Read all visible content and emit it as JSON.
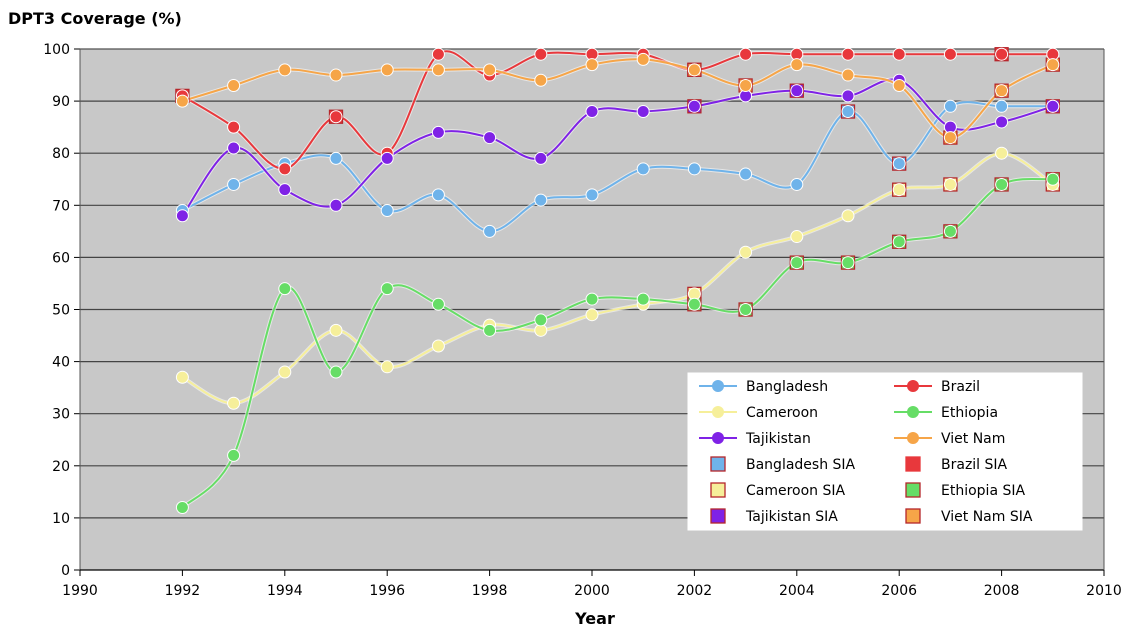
{
  "chart_data": {
    "type": "line",
    "title": "",
    "ylabel": "DPT3 Coverage (%)",
    "xlabel": "Year",
    "xlim": [
      1990,
      2010
    ],
    "ylim": [
      0,
      100
    ],
    "x_ticks": [
      1990,
      1992,
      1994,
      1996,
      1998,
      2000,
      2002,
      2004,
      2006,
      2008,
      2010
    ],
    "y_ticks": [
      0,
      10,
      20,
      30,
      40,
      50,
      60,
      70,
      80,
      90,
      100
    ],
    "grid": "horizontal",
    "legend_position": "bottom-right",
    "x": [
      1992,
      1993,
      1994,
      1995,
      1996,
      1997,
      1998,
      1999,
      2000,
      2001,
      2002,
      2003,
      2004,
      2005,
      2006,
      2007,
      2008,
      2009
    ],
    "series": [
      {
        "name": "Bangladesh",
        "color": "#6fb3ea",
        "values": [
          69,
          74,
          78,
          79,
          69,
          72,
          65,
          71,
          72,
          77,
          77,
          76,
          74,
          88,
          78,
          89,
          89,
          89
        ]
      },
      {
        "name": "Brazil",
        "color": "#e8383c",
        "values": [
          91,
          85,
          77,
          87,
          80,
          99,
          95,
          99,
          99,
          99,
          96,
          99,
          99,
          99,
          99,
          99,
          99,
          99
        ]
      },
      {
        "name": "Cameroon",
        "color": "#f6ef9a",
        "values": [
          37,
          32,
          38,
          46,
          39,
          43,
          47,
          46,
          49,
          51,
          53,
          61,
          64,
          68,
          73,
          74,
          80,
          74
        ]
      },
      {
        "name": "Ethiopia",
        "color": "#66dd66",
        "values": [
          12,
          22,
          54,
          38,
          54,
          51,
          46,
          48,
          52,
          52,
          51,
          50,
          59,
          59,
          63,
          65,
          74,
          75
        ]
      },
      {
        "name": "Tajikistan",
        "color": "#7f22e6",
        "values": [
          68,
          81,
          73,
          70,
          79,
          84,
          83,
          79,
          88,
          88,
          89,
          91,
          92,
          91,
          94,
          85,
          86,
          89
        ]
      },
      {
        "name": "Viet Nam",
        "color": "#f6a548",
        "values": [
          90,
          93,
          96,
          95,
          96,
          96,
          96,
          94,
          97,
          98,
          96,
          93,
          97,
          95,
          93,
          83,
          92,
          97
        ]
      }
    ],
    "sia_series": [
      {
        "name": "Bangladesh SIA",
        "color": "#6fb3ea",
        "points": [
          [
            2005,
            88
          ],
          [
            2006,
            78
          ]
        ]
      },
      {
        "name": "Brazil SIA",
        "color": "#e8383c",
        "points": [
          [
            1992,
            91
          ],
          [
            1995,
            87
          ],
          [
            2002,
            96
          ],
          [
            2008,
            99
          ]
        ]
      },
      {
        "name": "Cameroon SIA",
        "color": "#f6ef9a",
        "points": [
          [
            2002,
            53
          ],
          [
            2006,
            73
          ],
          [
            2007,
            74
          ],
          [
            2009,
            74
          ]
        ]
      },
      {
        "name": "Ethiopia SIA",
        "color": "#66dd66",
        "points": [
          [
            2002,
            51
          ],
          [
            2003,
            50
          ],
          [
            2004,
            59
          ],
          [
            2005,
            59
          ],
          [
            2006,
            63
          ],
          [
            2007,
            65
          ],
          [
            2008,
            74
          ],
          [
            2009,
            75
          ]
        ]
      },
      {
        "name": "Tajikistan SIA",
        "color": "#7f22e6",
        "points": [
          [
            2002,
            89
          ],
          [
            2004,
            92
          ],
          [
            2009,
            89
          ]
        ]
      },
      {
        "name": "Viet Nam SIA",
        "color": "#f6a548",
        "points": [
          [
            2002,
            96
          ],
          [
            2003,
            93
          ],
          [
            2007,
            83
          ],
          [
            2008,
            92
          ],
          [
            2009,
            97
          ]
        ]
      }
    ],
    "legend": {
      "left": [
        "Bangladesh",
        "Cameroon",
        "Tajikistan",
        "Bangladesh SIA",
        "Cameroon SIA",
        "Tajikistan SIA"
      ],
      "right": [
        "Brazil",
        "Ethiopia",
        "Viet Nam",
        "Brazil SIA",
        "Ethiopia SIA",
        "Viet Nam SIA"
      ]
    }
  },
  "colors": {
    "plot_background": "#c8c8c8",
    "grid": "#444444",
    "sia_border": "#b5262b"
  }
}
